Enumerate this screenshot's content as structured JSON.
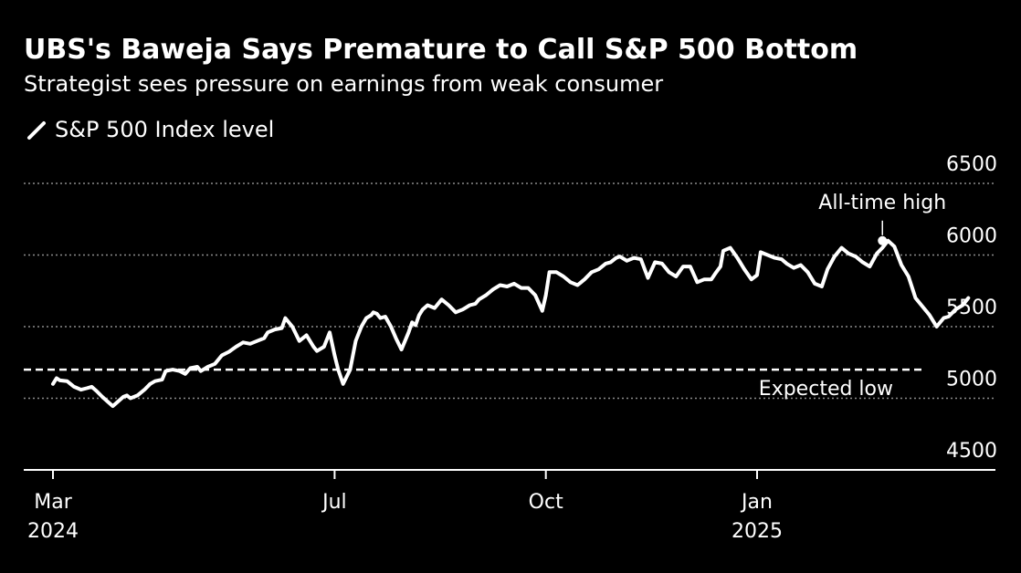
{
  "header": {
    "title": "UBS's Baweja Says Premature to Call S&P 500 Bottom",
    "subtitle": "Strategist sees pressure on earnings from weak consumer"
  },
  "legend": {
    "label": "S&P 500 Index level"
  },
  "colors": {
    "background": "#000000",
    "series": "#ffffff",
    "grid": "#8c8c8c",
    "axis": "#ffffff"
  },
  "chart_data": {
    "type": "line",
    "title": "UBS's Baweja Says Premature to Call S&P 500 Bottom",
    "subtitle": "Strategist sees pressure on earnings from weak consumer",
    "xlabel": "",
    "ylabel": "",
    "ylim": [
      4500,
      6500
    ],
    "yticks": [
      4500,
      5000,
      5500,
      6000,
      6500
    ],
    "ytick_labels": [
      "4500",
      "5000",
      "5500",
      "6000",
      "6500"
    ],
    "xticks": [
      {
        "line1": "Mar",
        "line2": "2024",
        "month_index": 0
      },
      {
        "line1": "Jul",
        "line2": "",
        "month_index": 4
      },
      {
        "line1": "Oct",
        "line2": "",
        "month_index": 7
      },
      {
        "line1": "Jan",
        "line2": "2025",
        "month_index": 10
      }
    ],
    "x_unit": "months since 2024-03-01",
    "grid": true,
    "legend_position": "top-left",
    "series": [
      {
        "name": "S&P 500 Index level",
        "x": [
          0.0,
          0.05,
          0.1,
          0.2,
          0.3,
          0.4,
          0.48,
          0.55,
          0.62,
          0.7,
          0.78,
          0.85,
          0.92,
          1.0,
          1.05,
          1.1,
          1.2,
          1.3,
          1.38,
          1.45,
          1.55,
          1.6,
          1.7,
          1.8,
          1.88,
          1.95,
          2.05,
          2.1,
          2.2,
          2.3,
          2.4,
          2.5,
          2.6,
          2.7,
          2.8,
          2.9,
          3.0,
          3.05,
          3.15,
          3.25,
          3.3,
          3.4,
          3.5,
          3.6,
          3.7,
          3.75,
          3.85,
          3.93,
          4.0,
          4.05,
          4.12,
          4.22,
          4.3,
          4.38,
          4.45,
          4.52,
          4.55,
          4.6,
          4.65,
          4.72,
          4.8,
          4.87,
          4.95,
          5.0,
          5.05,
          5.1,
          5.15,
          5.2,
          5.25,
          5.32,
          5.42,
          5.52,
          5.62,
          5.72,
          5.82,
          5.92,
          6.0,
          6.05,
          6.15,
          6.25,
          6.35,
          6.45,
          6.55,
          6.65,
          6.75,
          6.85,
          6.95,
          7.0,
          7.05,
          7.15,
          7.25,
          7.35,
          7.45,
          7.55,
          7.65,
          7.75,
          7.85,
          7.92,
          8.0,
          8.05,
          8.15,
          8.25,
          8.35,
          8.45,
          8.55,
          8.65,
          8.75,
          8.85,
          8.95,
          9.05,
          9.15,
          9.25,
          9.35,
          9.42,
          9.48,
          9.52,
          9.62,
          9.72,
          9.82,
          9.92,
          10.0,
          10.05,
          10.15,
          10.25,
          10.35,
          10.42,
          10.52,
          10.62,
          10.72,
          10.82,
          10.92,
          11.0,
          11.1,
          11.2,
          11.3,
          11.4,
          11.5,
          11.6,
          11.7,
          11.78,
          11.86,
          11.95,
          12.05,
          12.15,
          12.25,
          12.35,
          12.45,
          12.55,
          12.65,
          12.72,
          12.82,
          12.92,
          13.0
        ],
        "y": [
          5100,
          5140,
          5125,
          5120,
          5080,
          5060,
          5070,
          5080,
          5050,
          5010,
          4975,
          4945,
          4975,
          5010,
          5020,
          5000,
          5020,
          5060,
          5100,
          5120,
          5130,
          5190,
          5200,
          5190,
          5170,
          5210,
          5220,
          5190,
          5220,
          5240,
          5300,
          5325,
          5360,
          5390,
          5380,
          5400,
          5420,
          5460,
          5480,
          5490,
          5560,
          5500,
          5400,
          5440,
          5360,
          5330,
          5360,
          5460,
          5300,
          5200,
          5100,
          5200,
          5400,
          5500,
          5560,
          5580,
          5600,
          5590,
          5560,
          5570,
          5500,
          5420,
          5340,
          5400,
          5460,
          5530,
          5510,
          5580,
          5620,
          5650,
          5630,
          5690,
          5650,
          5600,
          5620,
          5650,
          5660,
          5690,
          5720,
          5760,
          5790,
          5780,
          5800,
          5770,
          5770,
          5720,
          5610,
          5720,
          5880,
          5880,
          5850,
          5810,
          5790,
          5830,
          5880,
          5900,
          5940,
          5950,
          5980,
          5990,
          5960,
          5980,
          5970,
          5840,
          5950,
          5940,
          5880,
          5850,
          5920,
          5920,
          5810,
          5830,
          5830,
          5880,
          5920,
          6030,
          6050,
          5980,
          5900,
          5830,
          5860,
          6020,
          6000,
          5980,
          5970,
          5940,
          5910,
          5930,
          5880,
          5800,
          5780,
          5900,
          5990,
          6050,
          6010,
          5990,
          5950,
          5920,
          6010,
          6050,
          6100,
          6060,
          5930,
          5850,
          5700,
          5640,
          5580,
          5500,
          5560,
          5570,
          5620,
          5650,
          5700
        ]
      }
    ],
    "reference_lines": [
      {
        "orientation": "horizontal",
        "value": 5200,
        "style": "dashed",
        "label": "Expected low"
      }
    ],
    "annotations": [
      {
        "text": "All-time high",
        "x": 11.78,
        "y": 6100
      }
    ]
  }
}
